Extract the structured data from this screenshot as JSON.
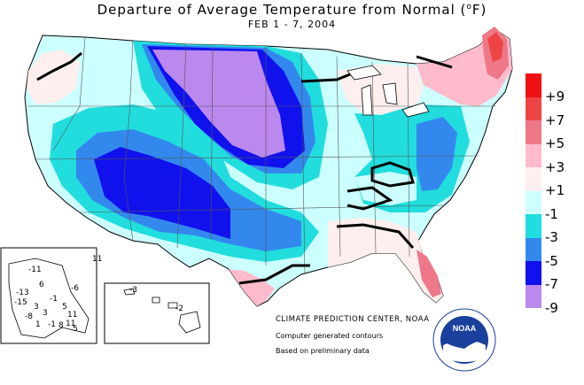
{
  "title": {
    "main": "Departure of Average Temperature from Normal (",
    "unit_sup": "o",
    "unit_end": "F)",
    "period": "FEB 1 - 7, 2004"
  },
  "legend": [
    {
      "label": "+9",
      "color": "#ee1111"
    },
    {
      "label": "+7",
      "color": "#ee4444"
    },
    {
      "label": "+5",
      "color": "#ee7788"
    },
    {
      "label": "+3",
      "color": "#ffbbcc"
    },
    {
      "label": "+1",
      "color": "#ffeeee"
    },
    {
      "label": "-1",
      "color": "#ccffff"
    },
    {
      "label": "-3",
      "color": "#22dddd"
    },
    {
      "label": "-5",
      "color": "#3388ee"
    },
    {
      "label": "-7",
      "color": "#1111ee"
    },
    {
      "label": "-9",
      "color": "#bb88ee"
    }
  ],
  "credits": {
    "agency": "CLIMATE PREDICTION CENTER, NOAA",
    "line2": "Computer generated contours",
    "line3": "Based on preliminary data"
  },
  "alaska_values": [
    "-11",
    "6",
    "-6",
    "11",
    "-13",
    "3",
    "-1",
    "5",
    "-15",
    "3",
    "1",
    "-8",
    "11",
    "11",
    "-1",
    "8",
    "5"
  ],
  "hawaii_values": [
    "-3",
    "-2"
  ],
  "logo_text": "NOAA"
}
